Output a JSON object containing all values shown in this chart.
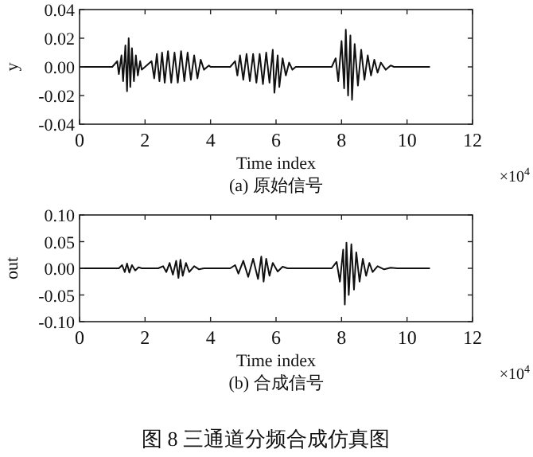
{
  "chart_data": [
    {
      "type": "line",
      "ylabel": "y",
      "xlabel": "Time index",
      "annotations": [
        "×10$^{4}$",
        "(a) 原始信号"
      ],
      "xlim": [
        0,
        12
      ],
      "xticks": [
        0,
        2,
        4,
        6,
        8,
        10,
        12
      ],
      "ylim": [
        -0.04,
        0.04
      ],
      "yticks": [
        -0.04,
        -0.02,
        {
          "value": 0,
          "label": "0.00"
        },
        0.02,
        0.04
      ],
      "grid": false,
      "series": [
        {
          "color": "#111111",
          "x": [
            0,
            1.0,
            1.15,
            1.2,
            1.28,
            1.33,
            1.4,
            1.45,
            1.5,
            1.55,
            1.6,
            1.66,
            1.72,
            1.78,
            1.85,
            1.9,
            2.0,
            2.2,
            2.28,
            2.36,
            2.44,
            2.52,
            2.6,
            2.7,
            2.8,
            2.9,
            3.0,
            3.1,
            3.2,
            3.3,
            3.4,
            3.5,
            3.6,
            3.7,
            3.8,
            3.95,
            4.0,
            4.6,
            4.75,
            4.82,
            4.9,
            5.0,
            5.1,
            5.2,
            5.3,
            5.4,
            5.5,
            5.6,
            5.7,
            5.8,
            5.9,
            5.95,
            6.05,
            6.1,
            6.2,
            6.3,
            6.4,
            6.5,
            6.6,
            7.7,
            7.82,
            7.9,
            8.0,
            8.08,
            8.13,
            8.2,
            8.27,
            8.32,
            8.4,
            8.5,
            8.6,
            8.7,
            8.8,
            8.9,
            9.0,
            9.1,
            9.2,
            9.35,
            9.5,
            9.6,
            10.7
          ],
          "values": [
            0,
            0,
            0.004,
            -0.005,
            0.008,
            -0.01,
            0.015,
            -0.017,
            0.02,
            -0.014,
            0.013,
            -0.01,
            0.008,
            -0.006,
            0.004,
            -0.002,
            0,
            0.004,
            -0.008,
            0.009,
            -0.01,
            0.01,
            -0.011,
            0.011,
            -0.011,
            0.01,
            -0.011,
            0.011,
            -0.01,
            0.01,
            -0.009,
            0.008,
            -0.008,
            0.005,
            -0.002,
            0.001,
            0,
            0,
            0.004,
            -0.006,
            0.008,
            -0.009,
            0.009,
            -0.01,
            0.009,
            -0.011,
            0.009,
            -0.012,
            0.01,
            -0.011,
            0.012,
            -0.018,
            0.008,
            -0.014,
            0.006,
            -0.006,
            0.003,
            -0.002,
            0,
            0,
            0.006,
            -0.01,
            0.018,
            -0.015,
            0.026,
            -0.02,
            0.022,
            -0.023,
            0.016,
            -0.013,
            0.012,
            -0.009,
            0.008,
            -0.006,
            0.005,
            -0.004,
            0.003,
            -0.002,
            0.001,
            0,
            0
          ]
        }
      ]
    },
    {
      "type": "line",
      "ylabel": "out",
      "xlabel": "Time index",
      "annotations": [
        "×10$^{4}$",
        "(b) 合成信号",
        "图 8 三通道分频合成仿真图"
      ],
      "xlim": [
        0,
        12
      ],
      "xticks": [
        0,
        2,
        4,
        6,
        8,
        10,
        12
      ],
      "ylim": [
        -0.1,
        0.1
      ],
      "yticks": [
        {
          "value": -0.1,
          "label": "-0.10"
        },
        -0.05,
        {
          "value": 0,
          "label": "0.00"
        },
        0.05,
        {
          "value": 0.1,
          "label": "0.10"
        }
      ],
      "grid": false,
      "series": [
        {
          "color": "#111111",
          "x": [
            0,
            1.2,
            1.3,
            1.38,
            1.45,
            1.52,
            1.6,
            1.7,
            1.8,
            1.9,
            2.4,
            2.55,
            2.65,
            2.75,
            2.85,
            2.95,
            3.02,
            3.08,
            3.15,
            3.25,
            3.35,
            3.5,
            3.65,
            3.8,
            4.6,
            4.75,
            4.85,
            5.0,
            5.15,
            5.3,
            5.45,
            5.55,
            5.62,
            5.7,
            5.8,
            5.9,
            6.05,
            6.2,
            6.35,
            7.7,
            7.85,
            7.95,
            8.05,
            8.1,
            8.15,
            8.22,
            8.3,
            8.38,
            8.45,
            8.55,
            8.65,
            8.75,
            8.85,
            8.95,
            9.1,
            9.3,
            9.5,
            9.7,
            10.7
          ],
          "values": [
            0,
            0,
            0.006,
            -0.007,
            0.009,
            -0.008,
            0.006,
            -0.004,
            0.002,
            0,
            0,
            0.004,
            -0.007,
            0.01,
            -0.012,
            0.014,
            -0.018,
            0.016,
            -0.014,
            0.01,
            -0.007,
            0.004,
            -0.002,
            0,
            0,
            0.006,
            -0.01,
            0.014,
            -0.016,
            0.018,
            -0.02,
            0.022,
            -0.025,
            0.018,
            -0.014,
            0.01,
            -0.006,
            0.003,
            0,
            0,
            0.012,
            -0.025,
            0.035,
            -0.068,
            0.048,
            -0.05,
            0.045,
            -0.04,
            0.03,
            -0.025,
            0.018,
            -0.014,
            0.01,
            -0.007,
            0.004,
            -0.002,
            0.001,
            0,
            0
          ]
        }
      ]
    }
  ]
}
